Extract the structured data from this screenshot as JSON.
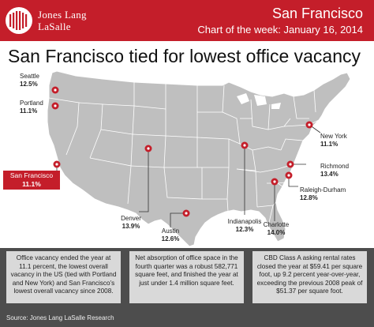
{
  "header": {
    "brand_line1": "Jones Lang",
    "brand_line2": "LaSalle",
    "title": "San Francisco",
    "subtitle": "Chart of the week: January 16, 2014"
  },
  "headline": "San Francisco tied for lowest office vacancy",
  "cities": [
    {
      "name": "Seattle",
      "value": "12.5%"
    },
    {
      "name": "Portland",
      "value": "11.1%"
    },
    {
      "name": "San Francisco",
      "value": "11.1%",
      "highlight": true
    },
    {
      "name": "Denver",
      "value": "13.9%"
    },
    {
      "name": "Austin",
      "value": "12.6%"
    },
    {
      "name": "Indianapolis",
      "value": "12.3%"
    },
    {
      "name": "Charlotte",
      "value": "14.0%"
    },
    {
      "name": "Raleigh-Durham",
      "value": "12.8%"
    },
    {
      "name": "Richmond",
      "value": "13.4%"
    },
    {
      "name": "New York",
      "value": "11.1%"
    }
  ],
  "notes": [
    "Office vacancy ended the year at 11.1 percent, the lowest overall vacancy in the US (tied with Portland and New York) and San Francisco’s lowest overall vacancy since 2008.",
    "Net absorption of office space in the fourth quarter was a robust 582,771 square feet, and finished the year at just under 1.4 million square feet.",
    "CBD Class A asking rental rates closed the year at $59.41 per square foot, up 9.2 percent year-over-year, exceeding the previous 2008 peak of $51.37 per square foot."
  ],
  "source": "Source: Jones Lang LaSalle Research",
  "colors": {
    "brand": "#c41e2a",
    "land": "#bfbfbf",
    "borders": "#ffffff",
    "panel": "#4d4d4d",
    "note_bg": "#d9d9d9"
  }
}
